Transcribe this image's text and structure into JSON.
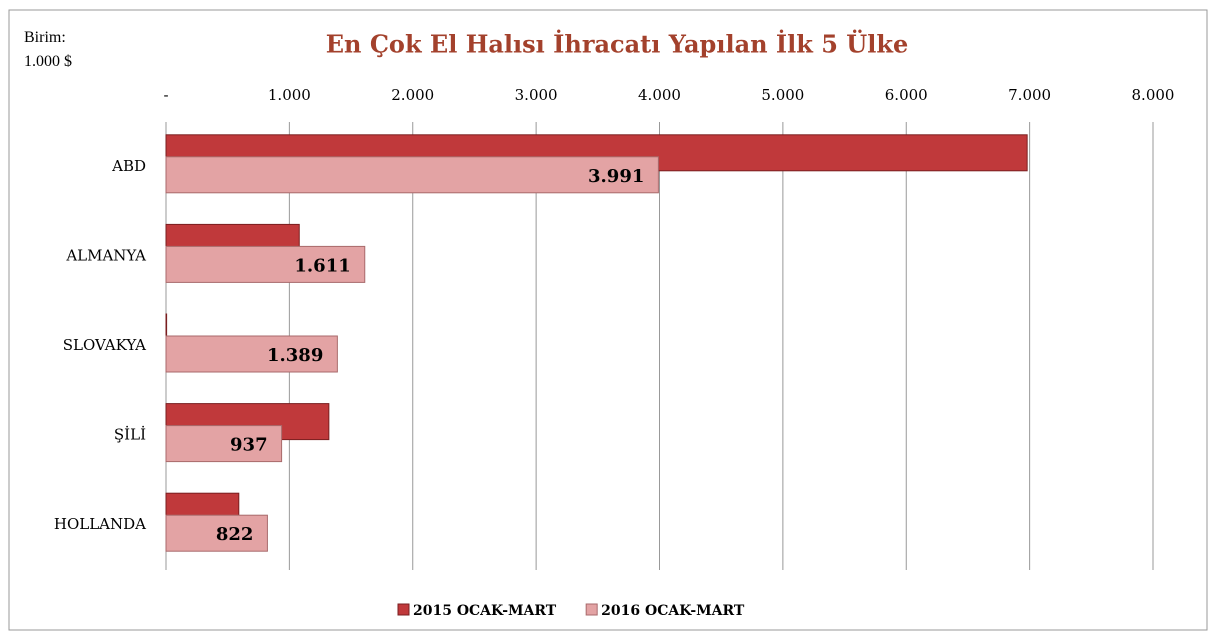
{
  "chart_data": {
    "type": "hbar",
    "title": "En Çok El Halısı İhracatı Yapılan İlk 5 Ülke",
    "unit_label": [
      "Birim:",
      "1.000 $"
    ],
    "categories": [
      "ABD",
      "ALMANYA",
      "SLOVAKYA",
      "ŞİLİ",
      "HOLLANDA"
    ],
    "series": [
      {
        "name": "2015 OCAK-MART",
        "color": "#c0393b",
        "values": [
          6980,
          1080,
          5,
          1320,
          590
        ]
      },
      {
        "name": "2016 OCAK-MART",
        "color": "#e3a3a4",
        "values": [
          3991,
          1611,
          1389,
          937,
          822
        ],
        "value_labels": [
          "3.991",
          "1.611",
          "1.389",
          "937",
          "822"
        ]
      }
    ],
    "xlim": [
      0,
      8000
    ],
    "xticks": [
      {
        "value": 0,
        "label": "-"
      },
      {
        "value": 1000,
        "label": "1.000"
      },
      {
        "value": 2000,
        "label": "2.000"
      },
      {
        "value": 3000,
        "label": "3.000"
      },
      {
        "value": 4000,
        "label": "4.000"
      },
      {
        "value": 5000,
        "label": "5.000"
      },
      {
        "value": 6000,
        "label": "6.000"
      },
      {
        "value": 7000,
        "label": "7.000"
      },
      {
        "value": 8000,
        "label": "8.000"
      }
    ],
    "grid": true,
    "legend": "bottom"
  }
}
